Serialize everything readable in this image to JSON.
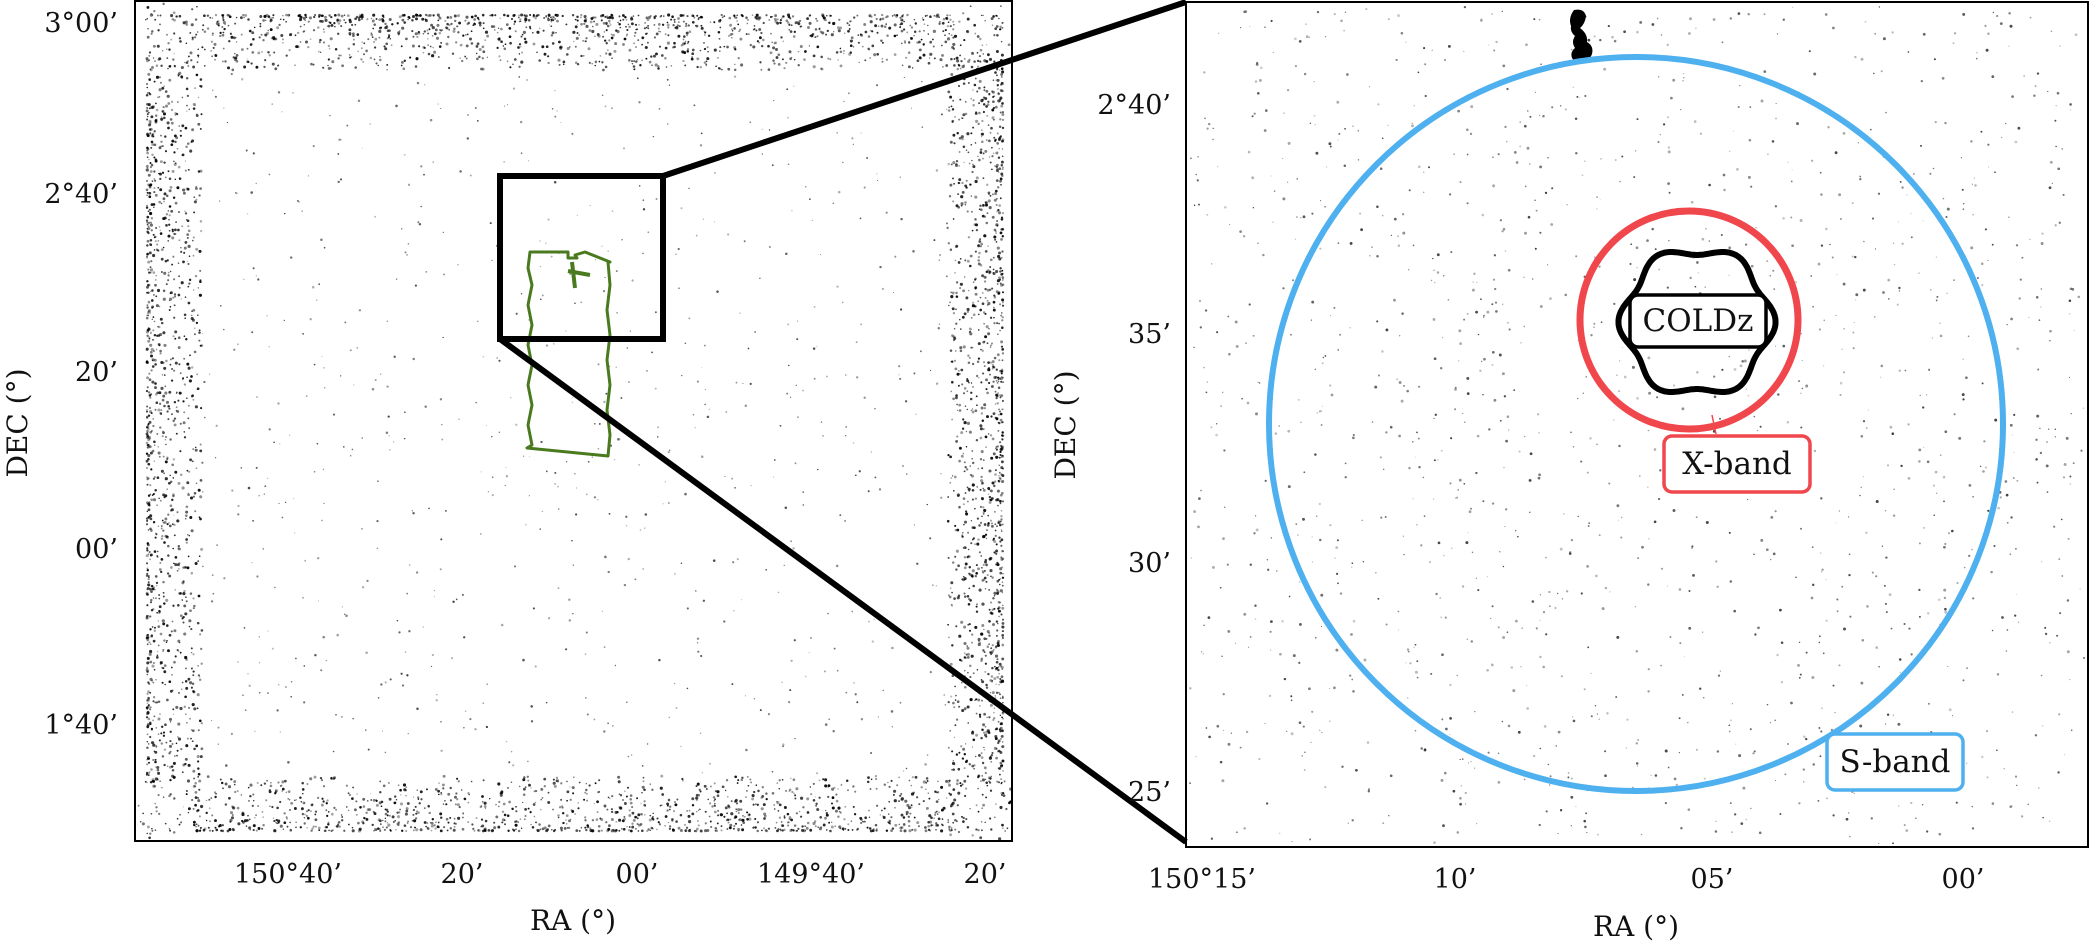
{
  "chart_data": [
    {
      "type": "scatter",
      "panel": "left",
      "xlabel": "RA (°)",
      "ylabel": "DEC (°)",
      "xticks": [
        "150°40’",
        "20’",
        "00’",
        "149°40’",
        "20’"
      ],
      "yticks": [
        "3°00’",
        "2°40’",
        "20’",
        "00’",
        "1°40’"
      ],
      "xlim_deg": [
        150.93,
        149.26
      ],
      "ylim_deg": [
        1.43,
        3.03
      ],
      "points_color": "#000000",
      "footprint_color": "#4a7a1e",
      "zoom_box_color": "#000000",
      "grid": false,
      "legend": "none"
    },
    {
      "type": "scatter",
      "panel": "right",
      "xlabel": "RA (°)",
      "ylabel": "DEC (°)",
      "xticks": [
        "150°15’",
        "10’",
        "05’",
        "00’"
      ],
      "yticks": [
        "2°40’",
        "35’",
        "30’",
        "25’"
      ],
      "xlim_deg": [
        150.25,
        149.95
      ],
      "ylim_deg": [
        2.396,
        2.703
      ],
      "regions": [
        {
          "label": "COLDz",
          "color": "#000000",
          "shape": "scalloped circle"
        },
        {
          "label": "X-band",
          "color": "#f0474d",
          "shape": "circle"
        },
        {
          "label": "S-band",
          "color": "#4eb0ef",
          "shape": "circle"
        }
      ],
      "grid": false,
      "legend": "none"
    }
  ]
}
